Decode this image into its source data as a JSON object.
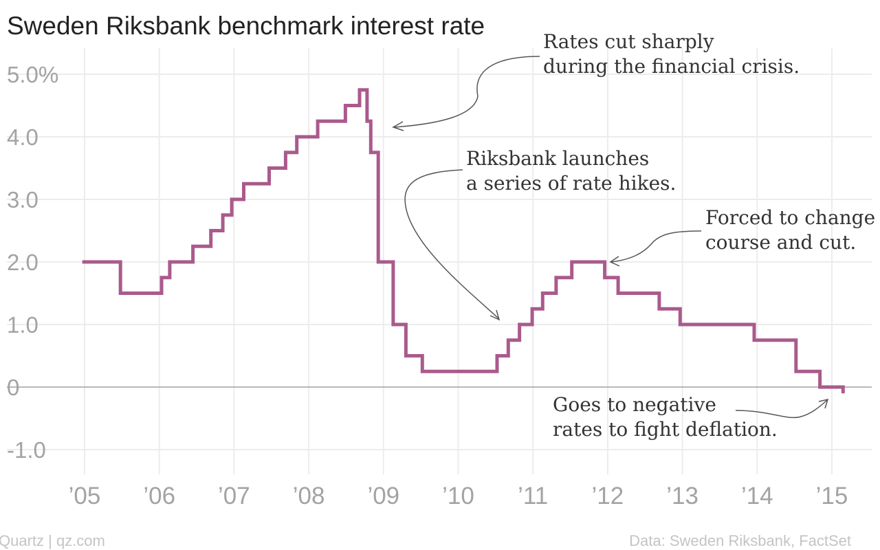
{
  "chart_data": {
    "type": "line",
    "title": "Sweden Riksbank benchmark interest rate",
    "ylim": [
      -1.35,
      5.6
    ],
    "yticks": [
      {
        "value": 5,
        "label": "5.0%"
      },
      {
        "value": 4,
        "label": "4.0"
      },
      {
        "value": 3,
        "label": "3.0"
      },
      {
        "value": 2,
        "label": "2.0"
      },
      {
        "value": 1,
        "label": "1.0"
      },
      {
        "value": 0,
        "label": "0"
      },
      {
        "value": -1,
        "label": "-1.0"
      }
    ],
    "xlim": [
      2004.9,
      2015.5
    ],
    "xticks": [
      {
        "value": 2005,
        "label": "’05"
      },
      {
        "value": 2006,
        "label": "’06"
      },
      {
        "value": 2007,
        "label": "’07"
      },
      {
        "value": 2008,
        "label": "’08"
      },
      {
        "value": 2009,
        "label": "’09"
      },
      {
        "value": 2010,
        "label": "’10"
      },
      {
        "value": 2011,
        "label": "’11"
      },
      {
        "value": 2012,
        "label": "’12"
      },
      {
        "value": 2013,
        "label": "’13"
      },
      {
        "value": 2014,
        "label": "’14"
      },
      {
        "value": 2015,
        "label": "’15"
      }
    ],
    "grid": "vertical and horizontal",
    "series": [
      {
        "color": "#aa5a8c",
        "step": "post",
        "points": [
          [
            2004.97,
            2.0
          ],
          [
            2005.48,
            1.5
          ],
          [
            2006.03,
            1.75
          ],
          [
            2006.14,
            2.0
          ],
          [
            2006.45,
            2.25
          ],
          [
            2006.69,
            2.5
          ],
          [
            2006.85,
            2.75
          ],
          [
            2006.97,
            3.0
          ],
          [
            2007.13,
            3.25
          ],
          [
            2007.47,
            3.5
          ],
          [
            2007.69,
            3.75
          ],
          [
            2007.84,
            4.0
          ],
          [
            2008.12,
            4.25
          ],
          [
            2008.49,
            4.5
          ],
          [
            2008.68,
            4.75
          ],
          [
            2008.78,
            4.25
          ],
          [
            2008.83,
            3.75
          ],
          [
            2008.93,
            2.0
          ],
          [
            2009.13,
            1.0
          ],
          [
            2009.3,
            0.5
          ],
          [
            2009.52,
            0.25
          ],
          [
            2010.52,
            0.5
          ],
          [
            2010.67,
            0.75
          ],
          [
            2010.82,
            1.0
          ],
          [
            2010.99,
            1.25
          ],
          [
            2011.13,
            1.5
          ],
          [
            2011.31,
            1.75
          ],
          [
            2011.52,
            2.0
          ],
          [
            2011.96,
            1.75
          ],
          [
            2012.14,
            1.5
          ],
          [
            2012.69,
            1.25
          ],
          [
            2012.97,
            1.0
          ],
          [
            2013.96,
            0.75
          ],
          [
            2014.52,
            0.25
          ],
          [
            2014.84,
            0.0
          ],
          [
            2015.15,
            -0.1
          ]
        ],
        "end": [
          2015.15,
          -0.1
        ]
      }
    ],
    "annotations": [
      {
        "lines": [
          "Rates cut sharply",
          "during the financial crisis."
        ]
      },
      {
        "lines": [
          "Riksbank launches",
          "a series of rate hikes."
        ]
      },
      {
        "lines": [
          "Forced to change",
          "course and cut."
        ]
      },
      {
        "lines": [
          "Goes to negative",
          "rates to fight deflation."
        ]
      }
    ],
    "footer_left": "Quartz | qz.com",
    "footer_right": "Data: Sweden Riksbank, FactSet"
  }
}
